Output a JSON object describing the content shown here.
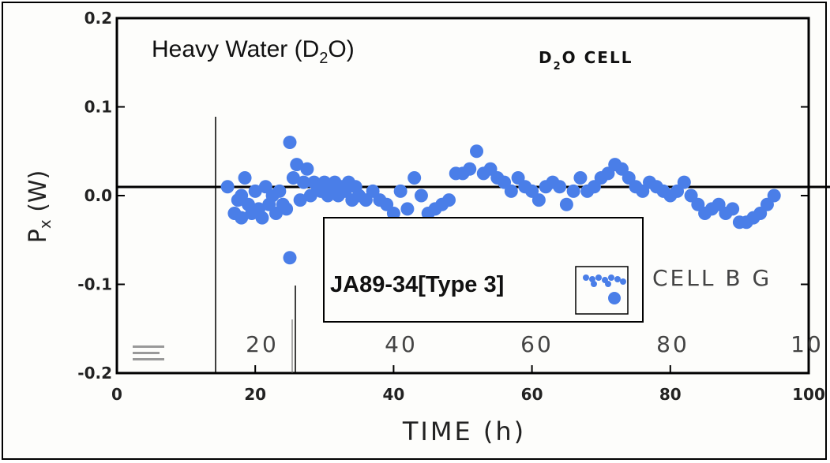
{
  "chart_data": {
    "type": "scatter",
    "title": "Heavy Water (D",
    "title_sub": "2",
    "title_end": "O)",
    "cell_label": "D",
    "cell_label_sub": "2",
    "cell_label_end": "O  CELL",
    "xlabel": "TIME  (h)",
    "ylabel": "P",
    "ylabel_sub": "x",
    "ylabel_end": " (W)",
    "xlim": [
      0,
      100
    ],
    "ylim": [
      -0.2,
      0.2
    ],
    "x_ticks": [
      "0",
      "20",
      "40",
      "60",
      "80",
      "100"
    ],
    "y_ticks": [
      "0.2",
      "0.1",
      "0.0",
      "-0.1",
      "-0.2"
    ],
    "inner_x_ticks": [
      "20",
      "40",
      "60",
      "80",
      "10"
    ],
    "inner_cell_label": "CELL B G",
    "legend": {
      "label": "JA89-34[Type 3]",
      "placement": "lower-center"
    },
    "point_color": "#4a7ee8",
    "series": [
      {
        "points": [
          [
            16,
            0.01
          ],
          [
            17,
            -0.02
          ],
          [
            17.5,
            -0.005
          ],
          [
            18,
            0.0
          ],
          [
            18,
            -0.025
          ],
          [
            18.5,
            0.02
          ],
          [
            19,
            -0.01
          ],
          [
            19.5,
            -0.02
          ],
          [
            20,
            0.005
          ],
          [
            20.5,
            -0.015
          ],
          [
            21,
            -0.025
          ],
          [
            21.5,
            0.01
          ],
          [
            22,
            -0.01
          ],
          [
            22.5,
            0.0
          ],
          [
            23,
            -0.02
          ],
          [
            23.5,
            0.005
          ],
          [
            24,
            -0.01
          ],
          [
            24.5,
            -0.015
          ],
          [
            25,
            0.06
          ],
          [
            25,
            -0.07
          ],
          [
            25.5,
            0.02
          ],
          [
            26,
            0.035
          ],
          [
            26.5,
            -0.005
          ],
          [
            27,
            0.015
          ],
          [
            27.5,
            0.03
          ],
          [
            28,
            0.0
          ],
          [
            28.5,
            0.015
          ],
          [
            29,
            0.01
          ],
          [
            29.5,
            0.005
          ],
          [
            30,
            0.015
          ],
          [
            30.5,
            0.0
          ],
          [
            31,
            0.01
          ],
          [
            31.5,
            0.015
          ],
          [
            32,
            0.0
          ],
          [
            32.5,
            0.01
          ],
          [
            33,
            0.005
          ],
          [
            33.5,
            0.015
          ],
          [
            34,
            -0.005
          ],
          [
            34.5,
            0.01
          ],
          [
            35,
            0.0
          ],
          [
            36,
            -0.005
          ],
          [
            37,
            0.005
          ],
          [
            38,
            -0.005
          ],
          [
            39,
            -0.01
          ],
          [
            40,
            -0.02
          ],
          [
            41,
            0.005
          ],
          [
            42,
            -0.015
          ],
          [
            43,
            0.02
          ],
          [
            44,
            0.0
          ],
          [
            45,
            -0.02
          ],
          [
            46,
            -0.015
          ],
          [
            47,
            -0.01
          ],
          [
            48,
            -0.005
          ],
          [
            49,
            0.025
          ],
          [
            50,
            0.025
          ],
          [
            51,
            0.03
          ],
          [
            52,
            0.05
          ],
          [
            53,
            0.025
          ],
          [
            54,
            0.03
          ],
          [
            55,
            0.02
          ],
          [
            56,
            0.015
          ],
          [
            57,
            0.005
          ],
          [
            58,
            0.02
          ],
          [
            59,
            0.01
          ],
          [
            60,
            0.005
          ],
          [
            61,
            -0.005
          ],
          [
            62,
            0.01
          ],
          [
            63,
            0.015
          ],
          [
            64,
            0.01
          ],
          [
            65,
            -0.01
          ],
          [
            66,
            0.005
          ],
          [
            67,
            0.02
          ],
          [
            68,
            0.005
          ],
          [
            69,
            0.01
          ],
          [
            70,
            0.02
          ],
          [
            71,
            0.025
          ],
          [
            72,
            0.035
          ],
          [
            73,
            0.03
          ],
          [
            74,
            0.02
          ],
          [
            75,
            0.01
          ],
          [
            76,
            0.005
          ],
          [
            77,
            0.015
          ],
          [
            78,
            0.01
          ],
          [
            79,
            0.005
          ],
          [
            80,
            0.0
          ],
          [
            81,
            0.005
          ],
          [
            82,
            0.015
          ],
          [
            83,
            0.0
          ],
          [
            84,
            -0.01
          ],
          [
            85,
            -0.02
          ],
          [
            86,
            -0.015
          ],
          [
            87,
            -0.01
          ],
          [
            88,
            -0.02
          ],
          [
            89,
            -0.015
          ],
          [
            90,
            -0.03
          ],
          [
            91,
            -0.03
          ],
          [
            92,
            -0.025
          ],
          [
            93,
            -0.02
          ],
          [
            94,
            -0.01
          ],
          [
            95,
            0.0
          ]
        ]
      }
    ]
  }
}
